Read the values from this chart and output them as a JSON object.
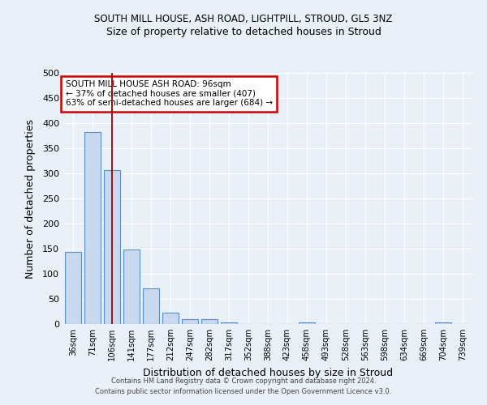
{
  "title_line1": "SOUTH MILL HOUSE, ASH ROAD, LIGHTPILL, STROUD, GL5 3NZ",
  "title_line2": "Size of property relative to detached houses in Stroud",
  "xlabel": "Distribution of detached houses by size in Stroud",
  "ylabel": "Number of detached properties",
  "footer": "Contains HM Land Registry data © Crown copyright and database right 2024.\nContains public sector information licensed under the Open Government Licence v3.0.",
  "bar_labels": [
    "36sqm",
    "71sqm",
    "106sqm",
    "141sqm",
    "177sqm",
    "212sqm",
    "247sqm",
    "282sqm",
    "317sqm",
    "352sqm",
    "388sqm",
    "423sqm",
    "458sqm",
    "493sqm",
    "528sqm",
    "563sqm",
    "598sqm",
    "634sqm",
    "669sqm",
    "704sqm",
    "739sqm"
  ],
  "bar_values": [
    143,
    383,
    307,
    149,
    71,
    23,
    10,
    10,
    4,
    0,
    0,
    0,
    4,
    0,
    0,
    0,
    0,
    0,
    0,
    4,
    0
  ],
  "bar_color": "#c8d9ee",
  "bar_edge_color": "#5b8fc9",
  "bg_color": "#eaf0f8",
  "grid_color": "#ffffff",
  "redline_x": 2,
  "annotation_text": "SOUTH MILL HOUSE ASH ROAD: 96sqm\n← 37% of detached houses are smaller (407)\n63% of semi-detached houses are larger (684) →",
  "annotation_box_color": "#ffffff",
  "annotation_box_edge": "#cc0000",
  "ylim": [
    0,
    500
  ],
  "yticks": [
    0,
    50,
    100,
    150,
    200,
    250,
    300,
    350,
    400,
    450,
    500
  ]
}
